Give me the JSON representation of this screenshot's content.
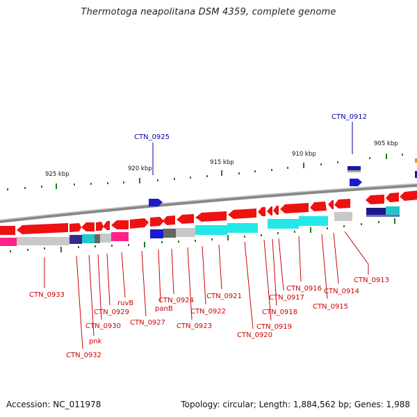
{
  "title": "Thermotoga neapolitana DSM 4359, complete genome",
  "footer": {
    "accession": "Accession: NC_011978",
    "summary": "Topology: circular; Length: 1,884,562 bp; Genes: 1,988"
  },
  "colors": {
    "forward_gene": "#ee1111",
    "label_red": "#cc0000",
    "label_blue": "#0000aa",
    "backbone": "#888888",
    "tick": "#1a7a1a"
  },
  "scale_labels": [
    "925 kbp",
    "920 kbp",
    "915 kbp",
    "910 kbp",
    "905 kbp"
  ],
  "gene_labels_top": [
    "CTN_0925",
    "CTN_0912"
  ],
  "gene_labels_bottom": [
    "CTN_0933",
    "CTN_0932",
    "pnk",
    "CTN_0930",
    "CTN_0929",
    "ruvB",
    "CTN_0927",
    "panB",
    "CTN_0924",
    "CTN_0923",
    "CTN_0922",
    "CTN_0921",
    "CTN_0920",
    "CTN_0919",
    "CTN_0918",
    "CTN_0917",
    "CTN_0916",
    "CTN_0915",
    "CTN_0914",
    "CTN_0913"
  ]
}
